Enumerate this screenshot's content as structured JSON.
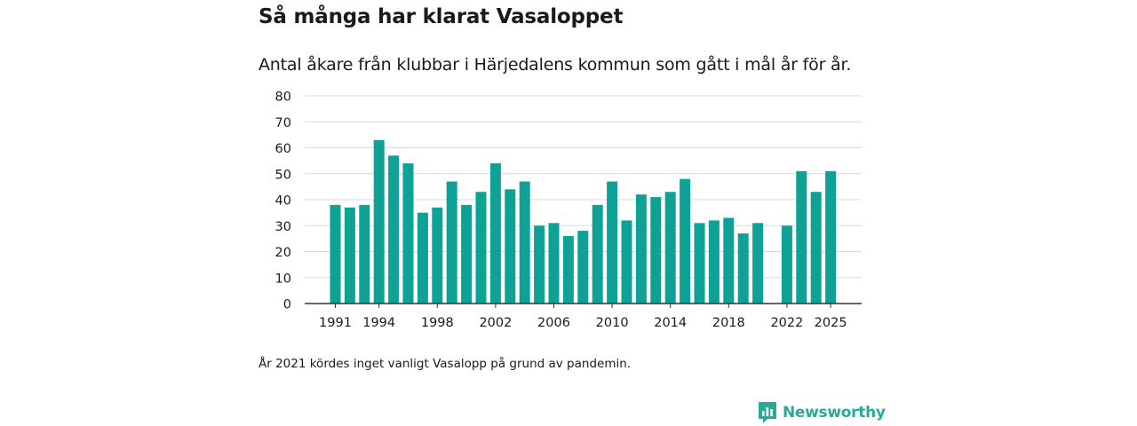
{
  "chart_data": {
    "type": "bar",
    "title": "Så många har klarat Vasaloppet",
    "subtitle": "Antal åkare från klubbar i Härjedalens kommun som gått i mål år för år.",
    "xlabel": "",
    "ylabel": "",
    "ylim": [
      0,
      80
    ],
    "yticks": [
      0,
      10,
      20,
      30,
      40,
      50,
      60,
      70,
      80
    ],
    "grid": true,
    "color": "#0ea297",
    "categories": [
      1991,
      1992,
      1993,
      1994,
      1995,
      1996,
      1997,
      1998,
      1999,
      2000,
      2001,
      2002,
      2003,
      2004,
      2005,
      2006,
      2007,
      2008,
      2009,
      2010,
      2011,
      2012,
      2013,
      2014,
      2015,
      2016,
      2017,
      2018,
      2019,
      2020,
      2021,
      2022,
      2023,
      2024,
      2025
    ],
    "values": [
      38,
      37,
      38,
      63,
      57,
      54,
      35,
      37,
      47,
      38,
      43,
      54,
      44,
      47,
      30,
      31,
      26,
      28,
      38,
      47,
      32,
      42,
      41,
      43,
      48,
      31,
      32,
      33,
      27,
      31,
      null,
      30,
      51,
      43,
      51
    ],
    "xtick_labels": [
      "1991",
      "1994",
      "1998",
      "2002",
      "2006",
      "2010",
      "2014",
      "2018",
      "2022",
      "2025"
    ]
  },
  "note": "År 2021 kördes inget vanligt Vasalopp på grund av pandemin.",
  "logo": {
    "text": "Newsworthy",
    "icon": "newsworthy-chart-icon",
    "color": "#2aa89a"
  }
}
